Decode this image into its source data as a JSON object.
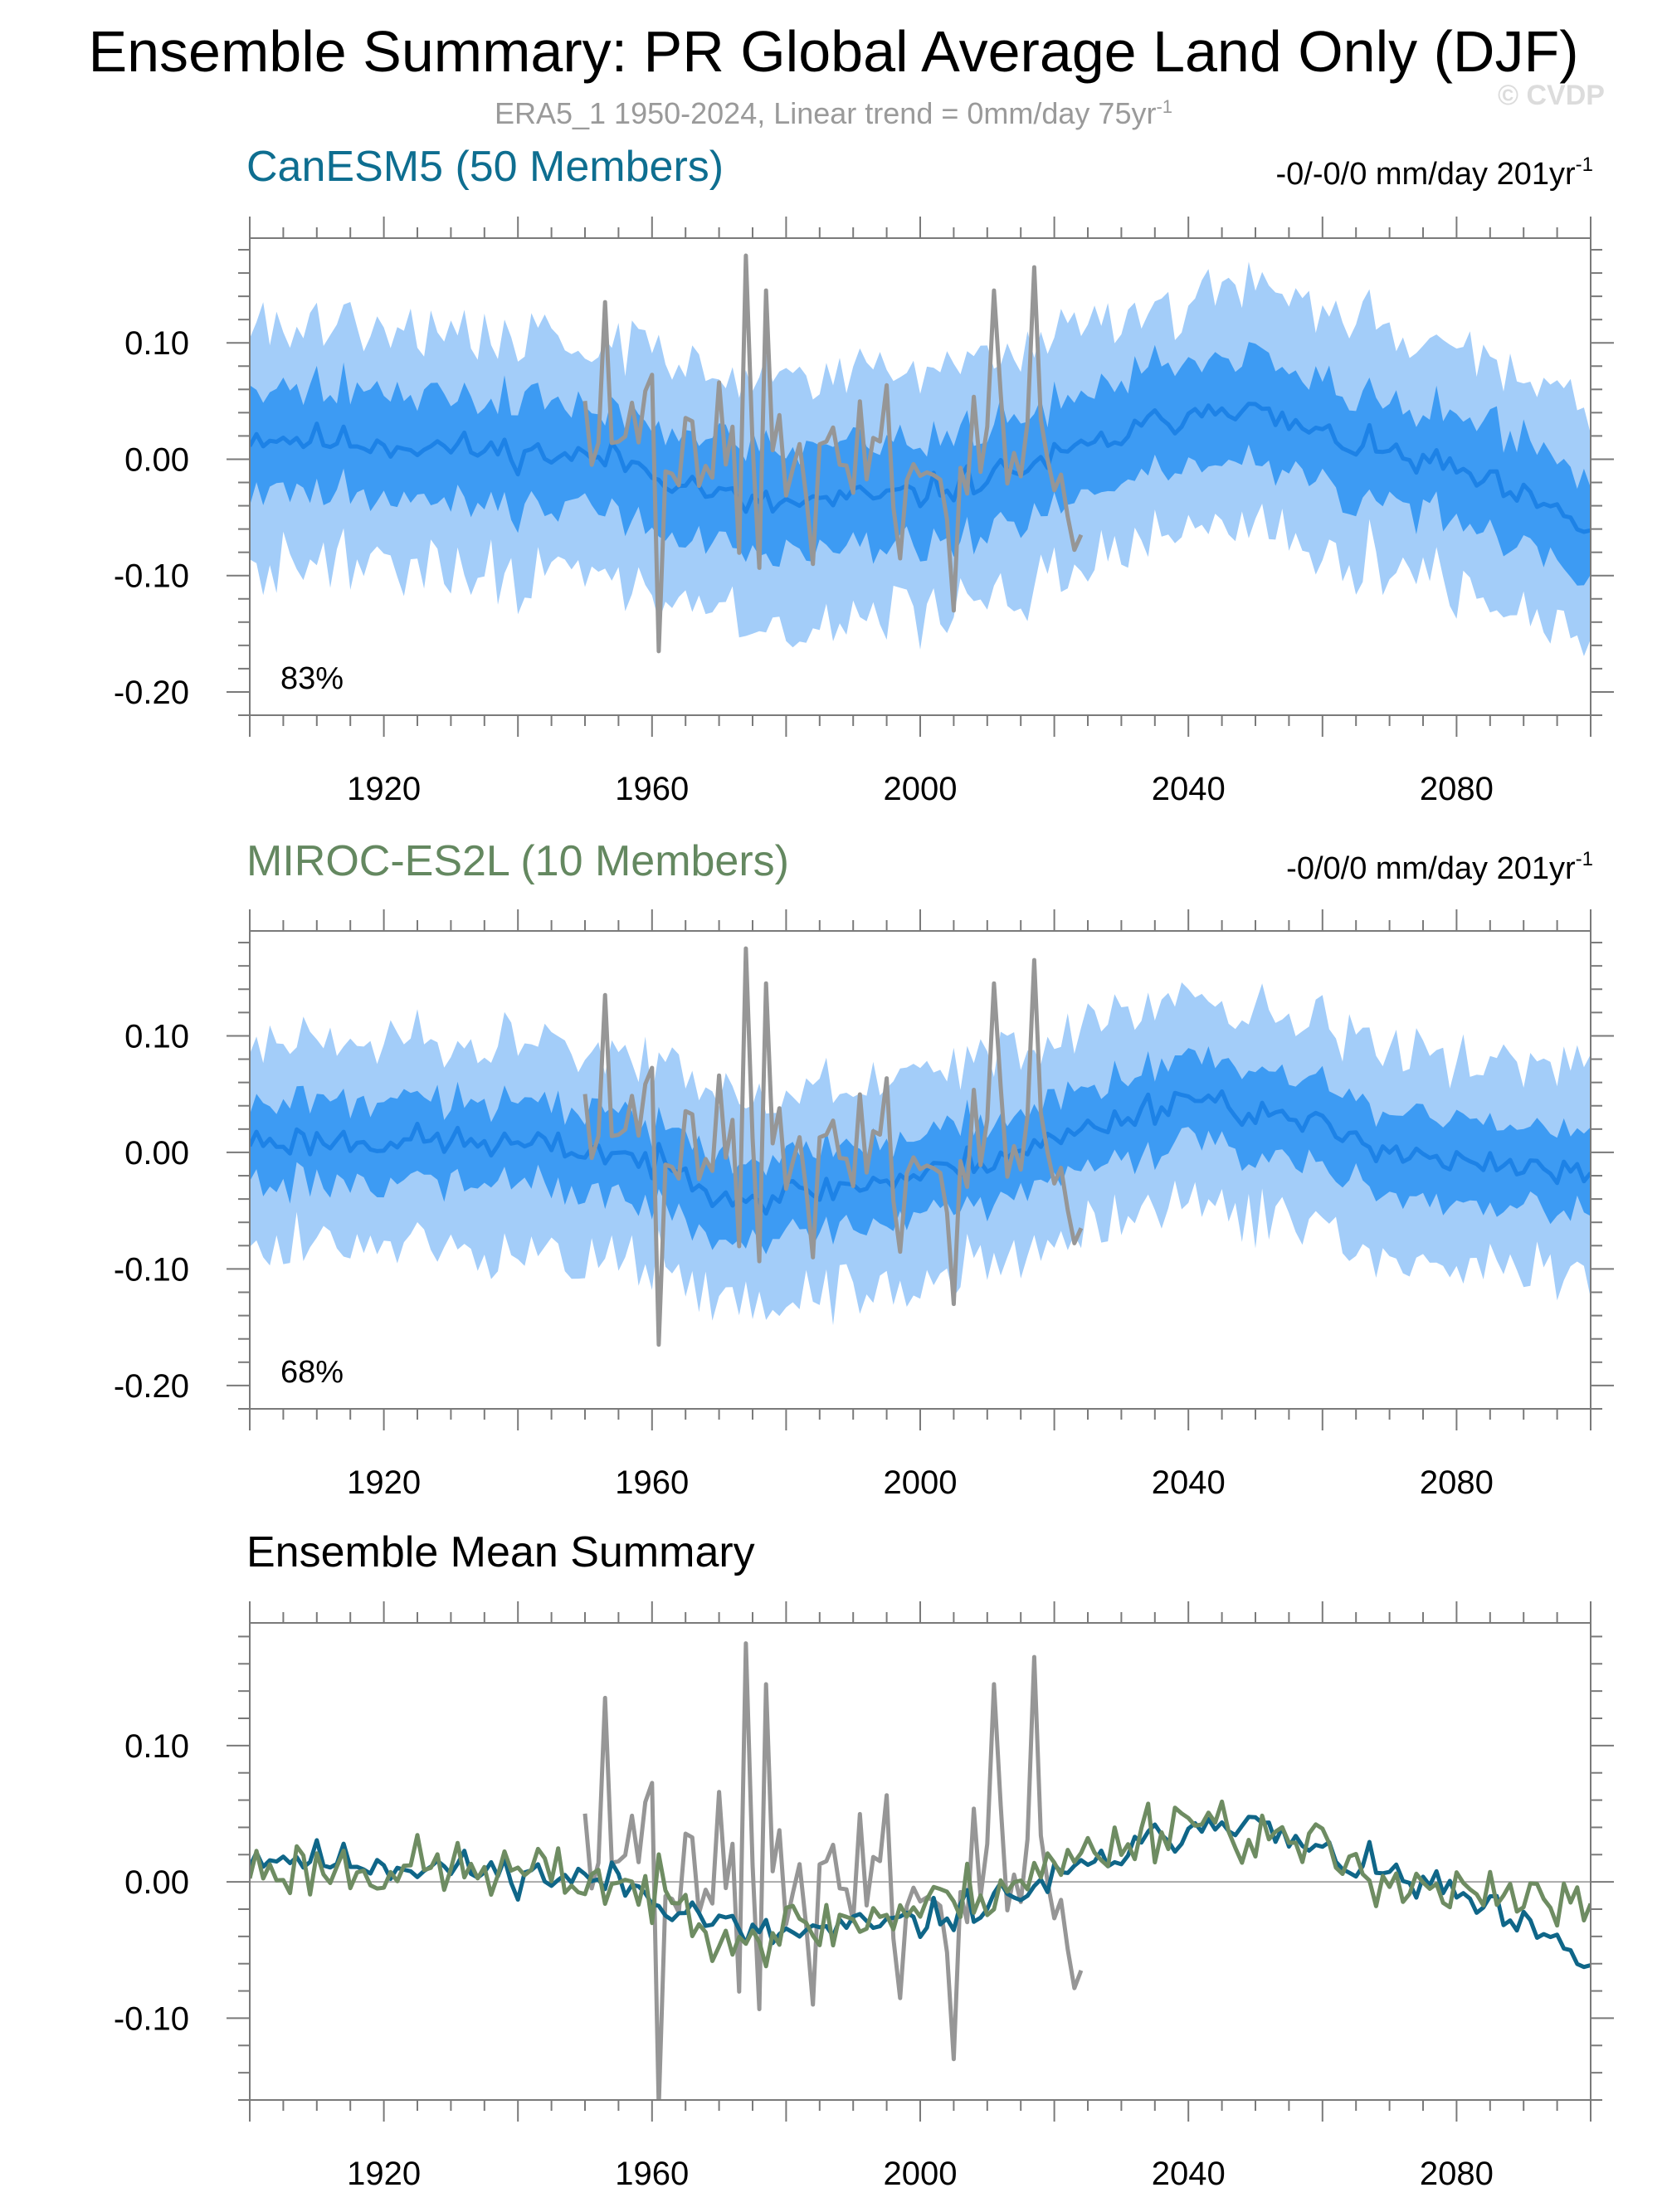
{
  "page": {
    "title": "Ensemble Summary: PR Global Average Land Only (DJF)",
    "subtitle": "ERA5_1 1950-2024, Linear trend = 0mm/day 75yr",
    "subtitle_sup": "-1",
    "watermark": "© CVDP"
  },
  "colors": {
    "band_outer": "#a3cdf9",
    "band_inner": "#3d9bf3",
    "mean_line": "#1d82e6",
    "obs_line": "#969696",
    "canesm_title": "#0e6e90",
    "miroc_title": "#648860",
    "canesm_mean": "#0f6688",
    "miroc_mean": "#6e8c62",
    "zero_line": "#a9a9a9"
  },
  "chart_data": [
    {
      "type": "area",
      "title": "CanESM5 (50 Members)",
      "trend_label": "-0/-0/0 mm/day 201yr",
      "trend_sup": "-1",
      "percent_label": "83%",
      "xlim": [
        1900,
        2100
      ],
      "ylim": [
        -0.22,
        0.19
      ],
      "x_ticks": [
        1920,
        1960,
        2000,
        2040,
        2080
      ],
      "x_tick_labels": [
        "1920",
        "1960",
        "2000",
        "2040",
        "2080"
      ],
      "y_ticks": [
        -0.2,
        -0.1,
        0.0,
        0.1
      ],
      "y_tick_labels": [
        "-0.20",
        "-0.10",
        "0.00",
        "0.10"
      ],
      "series": [
        {
          "name": "ensemble mean",
          "x_start": 1900,
          "x_end": 2100,
          "mean_shape": [
            [
              1900,
              0.02
            ],
            [
              1930,
              0.01
            ],
            [
              1955,
              0.0
            ],
            [
              1975,
              -0.04
            ],
            [
              2000,
              -0.03
            ],
            [
              2020,
              0.0
            ],
            [
              2045,
              0.05
            ],
            [
              2060,
              0.02
            ],
            [
              2080,
              -0.01
            ],
            [
              2100,
              -0.06
            ]
          ],
          "inner_halfwidth": 0.045,
          "outer_halfwidth": 0.1
        },
        {
          "name": "ERA5_1",
          "x_start": 1950,
          "x_end": 2024
        }
      ]
    },
    {
      "type": "area",
      "title": "MIROC-ES2L (10 Members)",
      "trend_label": "-0/0/0 mm/day 201yr",
      "trend_sup": "-1",
      "percent_label": "68%",
      "xlim": [
        1900,
        2100
      ],
      "ylim": [
        -0.22,
        0.19
      ],
      "x_ticks": [
        1920,
        1960,
        2000,
        2040,
        2080
      ],
      "x_tick_labels": [
        "1920",
        "1960",
        "2000",
        "2040",
        "2080"
      ],
      "y_ticks": [
        -0.2,
        -0.1,
        0.0,
        0.1
      ],
      "y_tick_labels": [
        "-0.20",
        "-0.10",
        "0.00",
        "0.10"
      ],
      "series": [
        {
          "name": "ensemble mean",
          "x_start": 1900,
          "x_end": 2100,
          "mean_shape": [
            [
              1900,
              0.01
            ],
            [
              1930,
              0.01
            ],
            [
              1955,
              0.0
            ],
            [
              1975,
              -0.04
            ],
            [
              2000,
              -0.02
            ],
            [
              2020,
              0.01
            ],
            [
              2040,
              0.05
            ],
            [
              2060,
              0.02
            ],
            [
              2080,
              -0.01
            ],
            [
              2100,
              -0.02
            ]
          ],
          "inner_halfwidth": 0.035,
          "outer_halfwidth": 0.085
        },
        {
          "name": "ERA5_1",
          "x_start": 1950,
          "x_end": 2024
        }
      ]
    },
    {
      "type": "line",
      "title": "Ensemble Mean Summary",
      "xlim": [
        1900,
        2100
      ],
      "ylim": [
        -0.16,
        0.19
      ],
      "x_ticks": [
        1920,
        1960,
        2000,
        2040,
        2080
      ],
      "x_tick_labels": [
        "1920",
        "1960",
        "2000",
        "2040",
        "2080"
      ],
      "y_ticks": [
        -0.1,
        0.0,
        0.1
      ],
      "y_tick_labels": [
        "-0.10",
        "0.00",
        "0.10"
      ],
      "series": [
        {
          "name": "CanESM5",
          "x_start": 1900,
          "x_end": 2100
        },
        {
          "name": "MIROC-ES2L",
          "x_start": 1900,
          "x_end": 2100
        },
        {
          "name": "ERA5_1",
          "x_start": 1950,
          "x_end": 2024
        }
      ]
    }
  ]
}
